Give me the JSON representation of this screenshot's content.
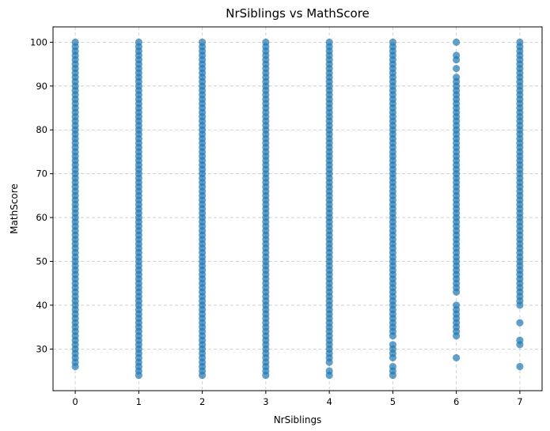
{
  "chart_data": {
    "type": "scatter",
    "title": "NrSiblings vs MathScore",
    "xlabel": "NrSiblings",
    "ylabel": "MathScore",
    "xlim": [
      -0.35,
      7.35
    ],
    "ylim": [
      20.5,
      103.5
    ],
    "xticks": [
      0,
      1,
      2,
      3,
      4,
      5,
      6,
      7
    ],
    "yticks": [
      30,
      40,
      50,
      60,
      70,
      80,
      90,
      100
    ],
    "grid": true,
    "marker_color": "#1f77b4",
    "marker_alpha": 0.7,
    "columns": [
      {
        "x": 0,
        "dense_range": [
          26,
          100
        ],
        "points": []
      },
      {
        "x": 1,
        "dense_range": [
          24,
          100
        ],
        "points": []
      },
      {
        "x": 2,
        "dense_range": [
          24,
          100
        ],
        "points": []
      },
      {
        "x": 3,
        "dense_range": [
          24,
          100
        ],
        "points": []
      },
      {
        "x": 4,
        "dense_range": [
          27,
          100
        ],
        "points": [
          24,
          25
        ]
      },
      {
        "x": 5,
        "dense_range": [
          33,
          100
        ],
        "points": [
          24,
          25,
          26,
          28,
          29,
          30,
          31
        ]
      },
      {
        "x": 6,
        "dense_range": [
          43,
          92
        ],
        "points": [
          28,
          33,
          34,
          35,
          36,
          37,
          38,
          39,
          40,
          94,
          96,
          97,
          100
        ]
      },
      {
        "x": 7,
        "dense_range": [
          40,
          100
        ],
        "points": [
          26,
          31,
          32,
          36
        ]
      }
    ]
  }
}
